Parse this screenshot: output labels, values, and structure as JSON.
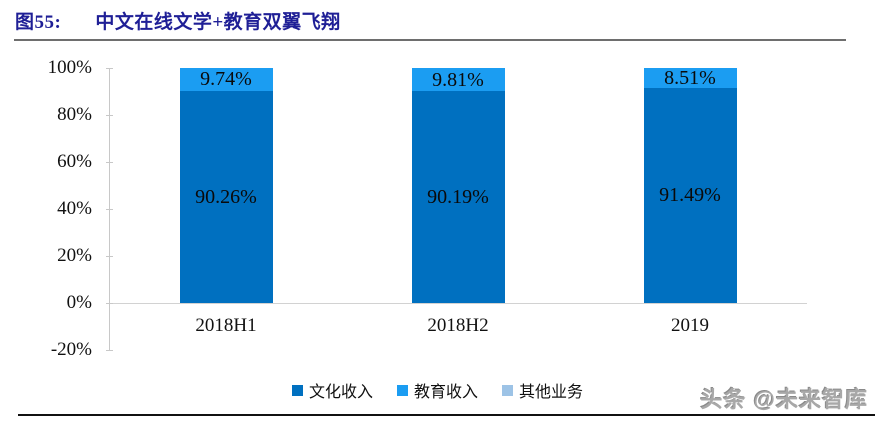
{
  "header": {
    "figure_label": "图55:",
    "title": "中文在线文学+教育双翼飞翔"
  },
  "watermark": "头条 @未来智库",
  "colors": {
    "title_navy": "#1f1f96",
    "culture_blue": "#0070C0",
    "education_blue": "#1B9DF2",
    "other_blue": "#9DC3E6"
  },
  "chart_data": {
    "type": "bar",
    "stacked": true,
    "title": "中文在线文学+教育双翼飞翔",
    "categories": [
      "2018H1",
      "2018H2",
      "2019"
    ],
    "series": [
      {
        "name": "文化收入",
        "color": "#0070C0",
        "values": [
          90.26,
          90.19,
          91.49
        ],
        "labels": [
          "90.26%",
          "90.19%",
          "91.49%"
        ]
      },
      {
        "name": "教育收入",
        "color": "#1B9DF2",
        "values": [
          9.74,
          9.81,
          8.51
        ],
        "labels": [
          "9.74%",
          "9.81%",
          "8.51%"
        ]
      },
      {
        "name": "其他业务",
        "color": "#9DC3E6",
        "values": [
          0,
          0,
          0
        ],
        "labels": [
          "",
          "",
          ""
        ]
      }
    ],
    "y_axis": {
      "ticks": [
        "100%",
        "80%",
        "60%",
        "40%",
        "20%",
        "0%",
        "-20%"
      ],
      "min": -20,
      "max": 100,
      "grid": false
    },
    "legend_position": "bottom",
    "xlabel": "",
    "ylabel": ""
  }
}
